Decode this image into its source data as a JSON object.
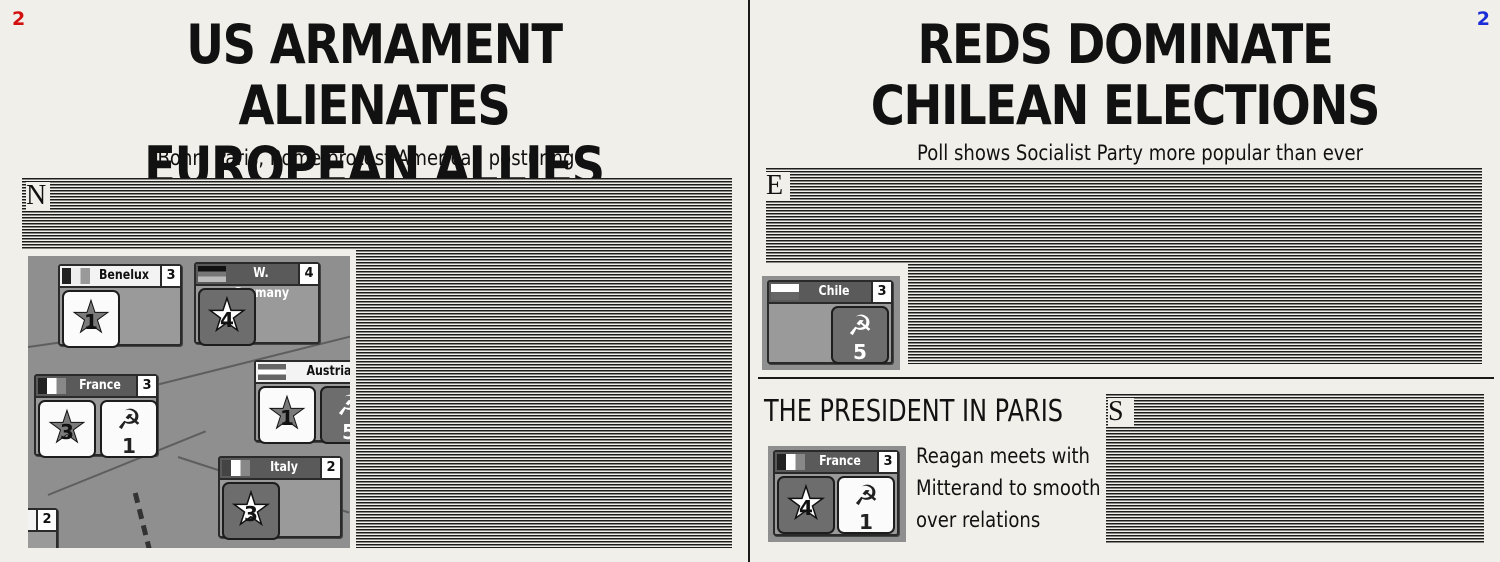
{
  "left": {
    "page_number": "2",
    "headline_line1": "US ARMAMENT ALIENATES",
    "headline_line2": "EUROPEAN ALLIES",
    "subhead": "Bonn, Paris, Rome protest American posturing",
    "dropcap": "N",
    "map": {
      "countries": [
        {
          "name": "Benelux",
          "stability": "3",
          "influence": [
            {
              "type": "star",
              "value": "1"
            }
          ]
        },
        {
          "name": "W. Germany",
          "stability": "4",
          "influence": [
            {
              "type": "star",
              "value": "4"
            }
          ]
        },
        {
          "name": "Austria",
          "stability": "",
          "influence": [
            {
              "type": "star",
              "value": "1"
            },
            {
              "type": "hammer-sickle",
              "value": "5"
            }
          ]
        },
        {
          "name": "France",
          "stability": "3",
          "influence": [
            {
              "type": "star",
              "value": "3"
            },
            {
              "type": "hammer-sickle",
              "value": "1"
            }
          ]
        },
        {
          "name": "Italy",
          "stability": "2",
          "influence": [
            {
              "type": "star",
              "value": "3"
            }
          ]
        },
        {
          "name": "",
          "stability": "2",
          "influence": []
        }
      ]
    }
  },
  "right": {
    "page_number": "2",
    "headline_line1": "REDS DOMINATE",
    "headline_line2": "CHILEAN ELECTIONS",
    "subhead": "Poll shows Socialist Party more popular than ever",
    "dropcap": "E",
    "chile": {
      "name": "Chile",
      "stability": "3",
      "influence": [
        {
          "type": "hammer-sickle",
          "value": "5"
        }
      ]
    },
    "section_title": "THE PRESIDENT IN PARIS",
    "section_dropcap": "S",
    "france": {
      "name": "France",
      "stability": "3",
      "influence": [
        {
          "type": "star",
          "value": "4"
        },
        {
          "type": "hammer-sickle",
          "value": "1"
        }
      ]
    },
    "story": "Reagan meets with Mitterand to smooth over relations"
  },
  "icons": {
    "star": "★",
    "hammer_sickle": "☭"
  },
  "colors": {
    "page_number_left": "#d21010",
    "page_number_right": "#1a2bd8",
    "paper": "#f1efe9"
  }
}
